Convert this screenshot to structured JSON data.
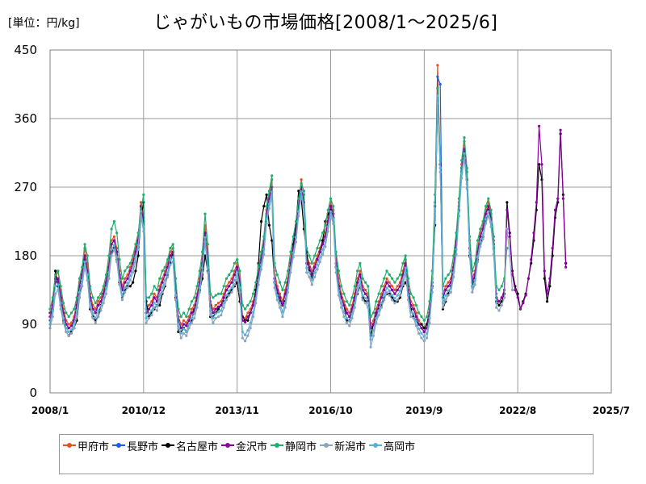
{
  "chart_data": {
    "type": "line",
    "title": "じゃがいもの市場価格[2008/1～2025/6]",
    "unit_label": "[単位：円/kg]",
    "xlabel": "",
    "ylabel": "",
    "x_ticks": [
      "2008/1",
      "2010/12",
      "2013/11",
      "2016/10",
      "2019/9",
      "2022/8",
      "2025/7"
    ],
    "y_ticks": [
      "0",
      "90",
      "180",
      "270",
      "360",
      "450"
    ],
    "ylim": [
      0,
      450
    ],
    "grid": true,
    "legend_position": "bottom",
    "x_unit": "month",
    "x_start": "2008/1",
    "series": [
      {
        "name": "甲府市",
        "color": "#e2531f",
        "values": [
          100,
          120,
          150,
          160,
          135,
          110,
          95,
          90,
          92,
          100,
          120,
          145,
          160,
          190,
          170,
          130,
          115,
          110,
          120,
          125,
          135,
          150,
          170,
          200,
          205,
          190,
          160,
          140,
          150,
          155,
          165,
          175,
          190,
          205,
          250,
          230,
          110,
          115,
          120,
          130,
          125,
          140,
          150,
          160,
          170,
          185,
          190,
          140,
          100,
          90,
          95,
          92,
          100,
          110,
          115,
          130,
          150,
          175,
          220,
          180,
          120,
          110,
          115,
          118,
          120,
          130,
          140,
          145,
          150,
          160,
          170,
          150,
          100,
          98,
          105,
          110,
          120,
          135,
          160,
          180,
          200,
          240,
          260,
          280,
          160,
          140,
          130,
          120,
          135,
          150,
          175,
          195,
          215,
          250,
          280,
          260,
          180,
          170,
          160,
          170,
          180,
          190,
          200,
          210,
          230,
          250,
          240,
          180,
          150,
          130,
          120,
          110,
          105,
          115,
          130,
          150,
          160,
          140,
          135,
          130,
          90,
          95,
          110,
          120,
          130,
          140,
          150,
          145,
          140,
          135,
          140,
          145,
          160,
          175,
          140,
          120,
          115,
          105,
          95,
          90,
          85,
          90,
          110,
          150,
          250,
          430,
          300,
          130,
          140,
          145,
          150,
          170,
          200,
          250,
          300,
          330,
          290,
          200,
          150,
          160,
          190,
          210,
          220,
          240,
          250,
          235,
          200,
          130
        ]
      },
      {
        "name": "長野市",
        "color": "#1a5fe0",
        "values": [
          95,
          115,
          145,
          150,
          125,
          105,
          90,
          85,
          88,
          95,
          115,
          140,
          155,
          180,
          160,
          125,
          110,
          105,
          115,
          120,
          130,
          145,
          165,
          195,
          200,
          185,
          155,
          135,
          145,
          150,
          160,
          170,
          185,
          200,
          245,
          225,
          105,
          110,
          115,
          125,
          120,
          135,
          145,
          155,
          165,
          180,
          185,
          135,
          95,
          85,
          90,
          88,
          95,
          105,
          110,
          125,
          145,
          170,
          210,
          170,
          115,
          105,
          110,
          113,
          115,
          125,
          135,
          140,
          145,
          155,
          165,
          145,
          95,
          93,
          100,
          105,
          115,
          130,
          155,
          175,
          195,
          235,
          255,
          270,
          150,
          135,
          125,
          115,
          130,
          145,
          170,
          190,
          210,
          245,
          270,
          250,
          170,
          165,
          155,
          165,
          175,
          185,
          195,
          205,
          225,
          245,
          235,
          170,
          140,
          125,
          115,
          105,
          100,
          110,
          125,
          145,
          155,
          135,
          130,
          125,
          85,
          90,
          105,
          115,
          125,
          135,
          145,
          140,
          135,
          130,
          135,
          140,
          155,
          170,
          135,
          115,
          110,
          100,
          90,
          85,
          80,
          85,
          105,
          145,
          245,
          415,
          405,
          125,
          135,
          140,
          145,
          165,
          195,
          245,
          295,
          320,
          280,
          190,
          145,
          155,
          185,
          205,
          215,
          235,
          245,
          230,
          195,
          125
        ]
      },
      {
        "name": "名古屋市",
        "color": "#000000",
        "values": [
          105,
          110,
          160,
          140,
          115,
          95,
          80,
          75,
          80,
          85,
          95,
          125,
          150,
          175,
          155,
          110,
          100,
          95,
          100,
          115,
          125,
          140,
          150,
          185,
          190,
          175,
          145,
          125,
          135,
          140,
          140,
          145,
          160,
          180,
          230,
          250,
          120,
          100,
          105,
          110,
          115,
          115,
          130,
          140,
          155,
          170,
          185,
          125,
          80,
          80,
          85,
          80,
          90,
          95,
          110,
          120,
          135,
          150,
          180,
          160,
          100,
          100,
          105,
          110,
          115,
          120,
          125,
          130,
          135,
          140,
          145,
          120,
          100,
          95,
          95,
          105,
          115,
          135,
          170,
          225,
          245,
          260,
          220,
          200,
          145,
          130,
          120,
          115,
          120,
          140,
          165,
          195,
          220,
          265,
          255,
          215,
          185,
          160,
          150,
          165,
          175,
          185,
          200,
          225,
          235,
          240,
          230,
          165,
          140,
          125,
          115,
          95,
          95,
          105,
          120,
          130,
          140,
          125,
          120,
          120,
          75,
          90,
          100,
          110,
          115,
          125,
          130,
          130,
          125,
          120,
          120,
          125,
          140,
          145,
          135,
          110,
          100,
          95,
          90,
          90,
          85,
          90,
          105,
          140,
          220,
          380,
          300,
          110,
          120,
          130,
          140,
          160,
          200,
          240,
          290,
          310,
          280,
          180,
          140,
          150,
          175,
          195,
          205,
          225,
          240,
          230,
          190,
          120,
          115,
          120,
          130,
          250,
          210,
          160,
          140,
          130,
          110,
          120,
          130,
          150,
          170,
          200,
          240,
          300,
          280,
          150,
          120,
          140,
          180,
          230,
          250,
          340,
          260,
          170
        ]
      },
      {
        "name": "金沢市",
        "color": "#8b009e",
        "values": [
          100,
          115,
          150,
          150,
          125,
          105,
          90,
          85,
          88,
          95,
          115,
          140,
          155,
          180,
          160,
          125,
          110,
          105,
          115,
          120,
          130,
          145,
          165,
          195,
          200,
          185,
          155,
          135,
          145,
          150,
          160,
          170,
          185,
          200,
          245,
          225,
          105,
          110,
          115,
          125,
          120,
          135,
          145,
          155,
          165,
          180,
          185,
          135,
          95,
          85,
          90,
          88,
          95,
          105,
          110,
          125,
          145,
          170,
          210,
          170,
          115,
          105,
          110,
          113,
          115,
          125,
          135,
          140,
          145,
          155,
          165,
          145,
          95,
          93,
          100,
          105,
          115,
          130,
          155,
          175,
          195,
          235,
          255,
          270,
          150,
          135,
          125,
          115,
          130,
          145,
          170,
          190,
          210,
          245,
          270,
          250,
          170,
          165,
          155,
          165,
          175,
          185,
          195,
          205,
          225,
          245,
          235,
          170,
          140,
          125,
          115,
          105,
          100,
          110,
          125,
          145,
          155,
          135,
          130,
          125,
          85,
          90,
          105,
          115,
          125,
          135,
          145,
          140,
          135,
          130,
          135,
          140,
          155,
          170,
          135,
          115,
          110,
          100,
          90,
          85,
          80,
          85,
          105,
          145,
          245,
          400,
          300,
          125,
          135,
          140,
          145,
          165,
          195,
          245,
          295,
          320,
          280,
          190,
          145,
          155,
          185,
          205,
          215,
          235,
          245,
          230,
          195,
          125,
          120,
          125,
          135,
          240,
          205,
          155,
          135,
          125,
          110,
          118,
          128,
          150,
          175,
          210,
          250,
          350,
          300,
          160,
          130,
          150,
          190,
          240,
          255,
          345,
          255,
          165
        ]
      },
      {
        "name": "静岡市",
        "color": "#1fae6e",
        "values": [
          110,
          125,
          155,
          160,
          140,
          118,
          105,
          100,
          105,
          110,
          125,
          150,
          165,
          195,
          180,
          140,
          125,
          118,
          125,
          130,
          140,
          155,
          180,
          215,
          225,
          210,
          175,
          150,
          160,
          165,
          170,
          180,
          195,
          210,
          240,
          260,
          125,
          125,
          130,
          140,
          135,
          150,
          160,
          165,
          175,
          190,
          195,
          150,
          110,
          100,
          105,
          100,
          110,
          120,
          125,
          140,
          160,
          185,
          235,
          195,
          130,
          125,
          128,
          130,
          130,
          140,
          150,
          155,
          160,
          170,
          175,
          160,
          115,
          110,
          115,
          120,
          130,
          145,
          165,
          185,
          205,
          245,
          265,
          285,
          170,
          155,
          145,
          135,
          145,
          160,
          185,
          205,
          225,
          255,
          275,
          265,
          190,
          180,
          170,
          180,
          190,
          200,
          210,
          220,
          240,
          255,
          245,
          185,
          160,
          140,
          130,
          120,
          115,
          125,
          140,
          160,
          170,
          150,
          145,
          140,
          100,
          105,
          120,
          130,
          140,
          150,
          160,
          155,
          150,
          145,
          150,
          155,
          170,
          180,
          150,
          130,
          125,
          115,
          105,
          100,
          95,
          100,
          120,
          160,
          260,
          400,
          305,
          140,
          150,
          155,
          160,
          180,
          210,
          255,
          305,
          335,
          295,
          205,
          160,
          170,
          200,
          215,
          225,
          245,
          255,
          240,
          205,
          140,
          135,
          140,
          150,
          190
        ]
      },
      {
        "name": "新潟市",
        "color": "#8aa4c0",
        "values": [
          85,
          100,
          130,
          135,
          110,
          92,
          80,
          75,
          78,
          85,
          100,
          125,
          140,
          165,
          148,
          112,
          98,
          92,
          100,
          108,
          118,
          130,
          150,
          180,
          188,
          172,
          142,
          122,
          132,
          138,
          148,
          158,
          172,
          188,
          232,
          212,
          92,
          98,
          102,
          112,
          108,
          122,
          132,
          142,
          152,
          168,
          172,
          122,
          85,
          72,
          78,
          75,
          85,
          92,
          98,
          112,
          132,
          158,
          198,
          158,
          102,
          92,
          98,
          100,
          102,
          112,
          122,
          128,
          132,
          142,
          152,
          132,
          72,
          68,
          75,
          85,
          100,
          118,
          142,
          162,
          182,
          222,
          242,
          258,
          138,
          122,
          112,
          100,
          112,
          132,
          158,
          178,
          198,
          232,
          258,
          238,
          158,
          152,
          142,
          152,
          162,
          172,
          182,
          192,
          212,
          232,
          222,
          158,
          128,
          112,
          100,
          92,
          88,
          98,
          112,
          132,
          142,
          122,
          118,
          112,
          60,
          75,
          92,
          102,
          112,
          122,
          132,
          128,
          122,
          118,
          122,
          128,
          142,
          158,
          122,
          100,
          98,
          88,
          78,
          72,
          68,
          72,
          92,
          132,
          232,
          380,
          290,
          112,
          122,
          128,
          132,
          152,
          182,
          232,
          282,
          308,
          268,
          178,
          132,
          142,
          172,
          192,
          202,
          222,
          232,
          218,
          182,
          112,
          108,
          115,
          125,
          215,
          180,
          135
        ]
      },
      {
        "name": "高岡市",
        "color": "#5ab1d6",
        "values": [
          90,
          108,
          140,
          142,
          118,
          98,
          85,
          80,
          83,
          90,
          108,
          132,
          148,
          172,
          155,
          118,
          104,
          98,
          108,
          114,
          124,
          138,
          158,
          188,
          194,
          178,
          148,
          128,
          138,
          144,
          154,
          164,
          178,
          194,
          238,
          218,
          98,
          104,
          108,
          118,
          114,
          128,
          138,
          148,
          158,
          174,
          178,
          128,
          90,
          78,
          84,
          80,
          90,
          98,
          104,
          118,
          138,
          164,
          204,
          164,
          108,
          98,
          104,
          106,
          108,
          118,
          128,
          134,
          138,
          148,
          158,
          138,
          80,
          76,
          82,
          92,
          106,
          124,
          148,
          168,
          188,
          228,
          248,
          264,
          144,
          128,
          118,
          106,
          118,
          138,
          164,
          184,
          204,
          238,
          264,
          244,
          164,
          158,
          148,
          158,
          168,
          178,
          188,
          198,
          218,
          238,
          228,
          164,
          134,
          118,
          106,
          98,
          94,
          104,
          118,
          138,
          148,
          128,
          124,
          118,
          70,
          82,
          98,
          108,
          118,
          128,
          138,
          134,
          128,
          124,
          128,
          134,
          148,
          164,
          128,
          106,
          104,
          94,
          84,
          78,
          74,
          78,
          98,
          138,
          238,
          390,
          295,
          118,
          128,
          134,
          138,
          158,
          188,
          238,
          288,
          314,
          274,
          184,
          138,
          148,
          178,
          198,
          208,
          228,
          238,
          224,
          188,
          118
        ]
      }
    ]
  }
}
